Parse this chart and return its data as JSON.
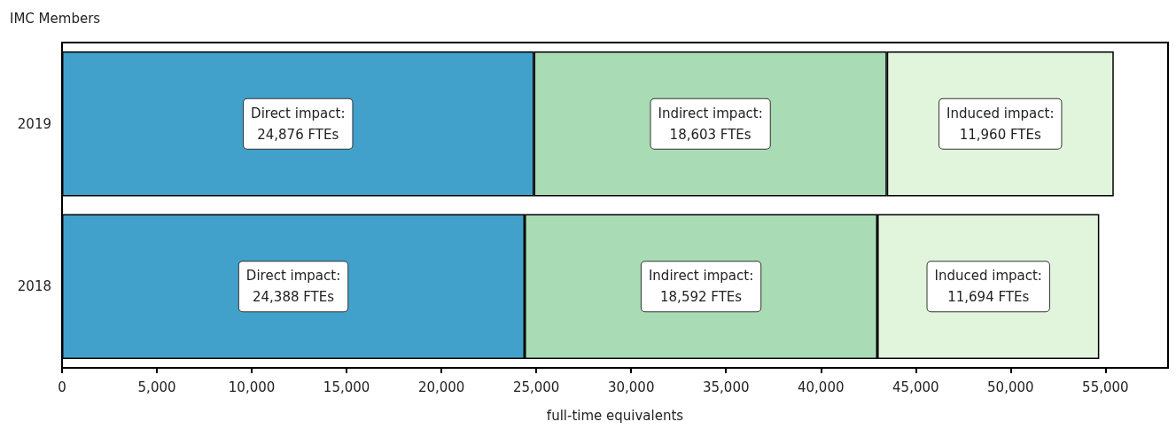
{
  "chart_data": {
    "type": "bar",
    "orientation": "horizontal",
    "stacked": true,
    "title": "IMC Members",
    "xlabel": "full-time equivalents",
    "categories": [
      "2019",
      "2018"
    ],
    "series": [
      {
        "color": "#42a1ca",
        "values": [
          24876,
          24388
        ],
        "value_labels": [
          "Direct impact:\n24,876 FTEs",
          "Direct impact:\n24,388 FTEs"
        ]
      },
      {
        "color": "#a9dcb5",
        "values": [
          18603,
          18592
        ],
        "value_labels": [
          "Indirect impact:\n18,603 FTEs",
          "Indirect impact:\n18,592 FTEs"
        ]
      },
      {
        "color": "#e1f4dc",
        "values": [
          11960,
          11694
        ],
        "value_labels": [
          "Induced impact:\n11,960 FTEs",
          "Induced impact:\n11,694 FTEs"
        ]
      }
    ],
    "xlim": [
      0,
      58300
    ],
    "xticks": [
      0,
      {
        "value": 5000,
        "label": "5,000"
      },
      {
        "value": 10000,
        "label": "10,000"
      },
      {
        "value": 15000,
        "label": "15,000"
      },
      {
        "value": 20000,
        "label": "20,000"
      },
      {
        "value": 25000,
        "label": "25,000"
      },
      {
        "value": 30000,
        "label": "30,000"
      },
      {
        "value": 35000,
        "label": "35,000"
      },
      {
        "value": 40000,
        "label": "40,000"
      },
      {
        "value": 45000,
        "label": "45,000"
      },
      {
        "value": 50000,
        "label": "50,000"
      },
      {
        "value": 55000,
        "label": "55,000"
      }
    ],
    "grid": false
  }
}
